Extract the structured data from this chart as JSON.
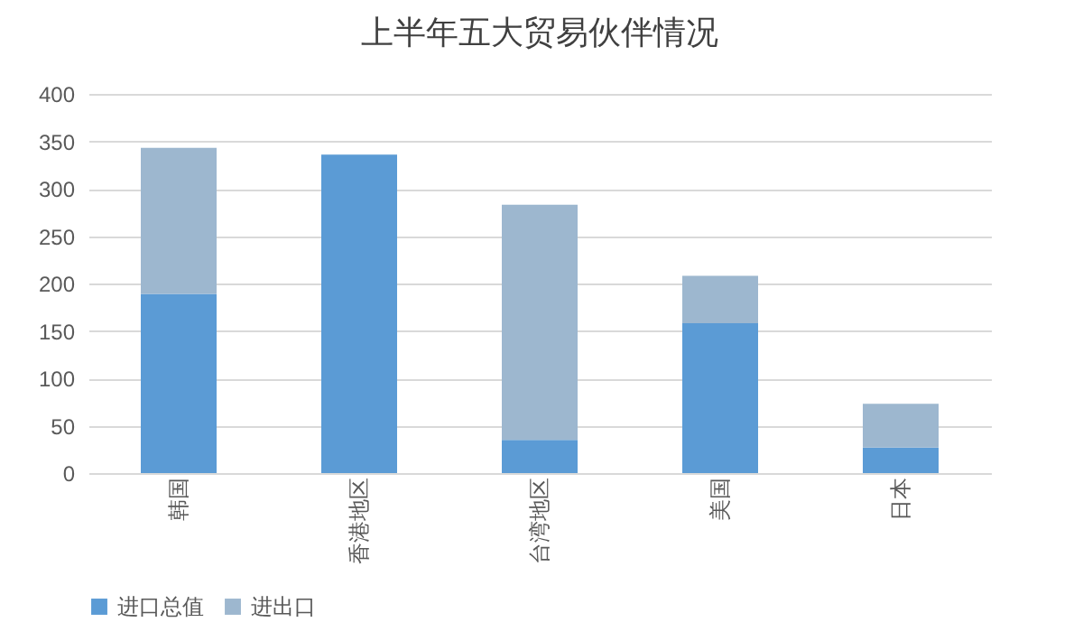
{
  "chart_data": {
    "type": "bar",
    "title": "上半年五大贸易伙伴情况",
    "stacked": true,
    "categories": [
      "韩国",
      "香港地区",
      "台湾地区",
      "美国",
      "日本"
    ],
    "series": [
      {
        "name": "进口总值",
        "color": "#5b9bd5",
        "values": [
          189,
          336,
          35,
          158,
          27
        ]
      },
      {
        "name": "进出口",
        "color": "#9db7cf",
        "values": [
          154,
          0,
          248,
          50,
          46
        ]
      }
    ],
    "ylim": [
      0,
      400
    ],
    "yticks": [
      0,
      50,
      100,
      150,
      200,
      250,
      300,
      350,
      400
    ],
    "grid": "y",
    "legend": "bottom"
  }
}
